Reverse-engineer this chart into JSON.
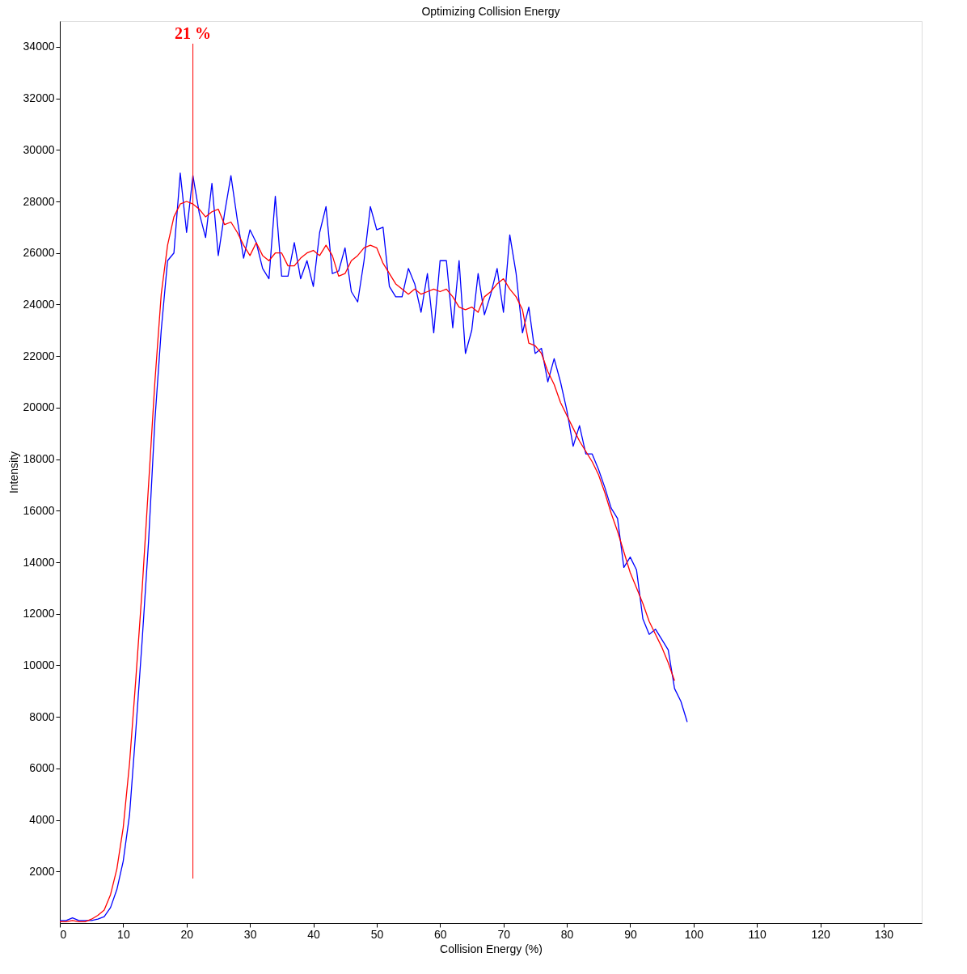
{
  "chart_data": {
    "type": "line",
    "title": "Optimizing Collision Energy",
    "xlabel": "Collision Energy (%)",
    "ylabel": "Intensity",
    "xlim": [
      0,
      136
    ],
    "xticks": [
      0,
      10,
      20,
      30,
      40,
      50,
      60,
      70,
      80,
      90,
      100,
      110,
      120,
      130
    ],
    "ylim": [
      0,
      35000
    ],
    "yticks": [
      2000,
      4000,
      6000,
      8000,
      10000,
      12000,
      14000,
      16000,
      18000,
      20000,
      22000,
      24000,
      26000,
      28000,
      30000,
      32000,
      34000
    ],
    "grid": false,
    "line_style": "solid",
    "marker": "none",
    "series": [
      {
        "color": "#0000ff",
        "x": [
          0,
          1,
          2,
          3,
          4,
          5,
          6,
          7,
          8,
          9,
          10,
          11,
          12,
          13,
          14,
          15,
          16,
          17,
          18,
          19,
          20,
          21,
          22,
          23,
          24,
          25,
          26,
          27,
          28,
          29,
          30,
          31,
          32,
          33,
          34,
          35,
          36,
          37,
          38,
          39,
          40,
          41,
          42,
          43,
          44,
          45,
          46,
          47,
          48,
          49,
          50,
          51,
          52,
          53,
          54,
          55,
          56,
          57,
          58,
          59,
          60,
          61,
          62,
          63,
          64,
          65,
          66,
          67,
          68,
          69,
          70,
          71,
          72,
          73,
          74,
          75,
          76,
          77,
          78,
          79,
          80,
          81,
          82,
          83,
          84,
          85,
          86,
          87,
          88,
          89,
          90,
          91,
          92,
          93,
          94,
          95,
          96,
          97,
          98,
          99
        ],
        "values": [
          100,
          100,
          200,
          100,
          100,
          100,
          150,
          250,
          600,
          1300,
          2400,
          4200,
          7500,
          11000,
          14800,
          19500,
          23000,
          25700,
          26000,
          29100,
          26800,
          29000,
          27550,
          26600,
          28700,
          25900,
          27550,
          29000,
          27300,
          25800,
          26900,
          26400,
          25400,
          25000,
          28200,
          25100,
          25100,
          26400,
          25000,
          25700,
          24700,
          26800,
          27800,
          25200,
          25300,
          26200,
          24500,
          24100,
          25700,
          27800,
          26900,
          27000,
          24700,
          24300,
          24300,
          25400,
          24800,
          23700,
          25200,
          22900,
          25700,
          25700,
          23100,
          25700,
          22100,
          23000,
          25200,
          23600,
          24400,
          25400,
          23700,
          26700,
          25200,
          22900,
          23900,
          22100,
          22300,
          21000,
          21900,
          21000,
          19900,
          18500,
          19300,
          18200,
          18200,
          17600,
          16900,
          16100,
          15700,
          13800,
          14200,
          13700,
          11800,
          11200,
          11400,
          11000,
          10600,
          9100,
          8600,
          7800
        ]
      },
      {
        "color": "#ff0000",
        "x": [
          0,
          1,
          2,
          3,
          4,
          5,
          6,
          7,
          8,
          9,
          10,
          11,
          12,
          13,
          14,
          15,
          16,
          17,
          18,
          19,
          20,
          21,
          22,
          23,
          24,
          25,
          26,
          27,
          28,
          29,
          30,
          31,
          32,
          33,
          34,
          35,
          36,
          37,
          38,
          39,
          40,
          41,
          42,
          43,
          44,
          45,
          46,
          47,
          48,
          49,
          50,
          51,
          52,
          53,
          54,
          55,
          56,
          57,
          58,
          59,
          60,
          61,
          62,
          63,
          64,
          65,
          66,
          67,
          68,
          69,
          70,
          71,
          72,
          73,
          74,
          75,
          76,
          77,
          78,
          79,
          80,
          81,
          82,
          83,
          84,
          85,
          86,
          87,
          88,
          89,
          90,
          91,
          92,
          93,
          94,
          95,
          96,
          97
        ],
        "values": [
          50,
          50,
          100,
          50,
          50,
          150,
          300,
          500,
          1100,
          2100,
          3700,
          6200,
          9500,
          13000,
          17000,
          21000,
          24400,
          26300,
          27400,
          27900,
          28000,
          27900,
          27700,
          27400,
          27600,
          27700,
          27100,
          27200,
          26800,
          26300,
          25900,
          26400,
          25900,
          25700,
          26000,
          26000,
          25500,
          25500,
          25800,
          26000,
          26100,
          25900,
          26300,
          25900,
          25100,
          25200,
          25700,
          25900,
          26200,
          26300,
          26200,
          25600,
          25200,
          24800,
          24600,
          24400,
          24600,
          24400,
          24500,
          24600,
          24500,
          24600,
          24300,
          23900,
          23800,
          23900,
          23700,
          24300,
          24500,
          24800,
          25000,
          24600,
          24300,
          23800,
          22500,
          22400,
          22100,
          21400,
          20900,
          20200,
          19700,
          19200,
          18700,
          18300,
          17900,
          17400,
          16700,
          15900,
          15200,
          14400,
          13600,
          13000,
          12400,
          11700,
          11200,
          10700,
          10100,
          9400
        ]
      }
    ],
    "ref_lines": [
      {
        "axis": "x",
        "value": 21,
        "label": "21 %",
        "color": "#ff0000"
      }
    ]
  }
}
